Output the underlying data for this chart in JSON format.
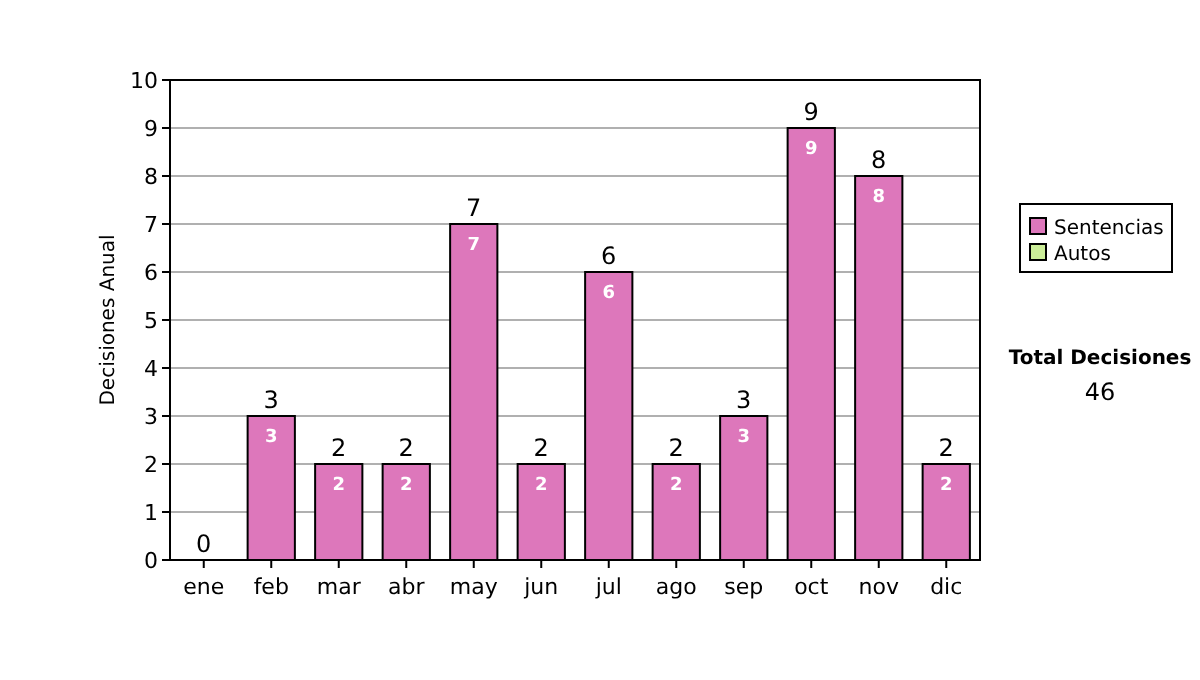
{
  "chart_data": {
    "type": "bar",
    "stacked": true,
    "ylabel": "Decisiones Anual",
    "categories": [
      "ene",
      "feb",
      "mar",
      "abr",
      "may",
      "jun",
      "jul",
      "ago",
      "sep",
      "oct",
      "nov",
      "dic"
    ],
    "series": [
      {
        "name": "Sentencias",
        "color": "#dd77bb",
        "values": [
          0,
          3,
          2,
          2,
          7,
          2,
          6,
          2,
          3,
          9,
          8,
          2
        ],
        "value_labels": [
          null,
          "3",
          "2",
          "2",
          "7",
          "2",
          "6",
          "2",
          "3",
          "9",
          "8",
          "2"
        ]
      },
      {
        "name": "Autos",
        "color": "#ccee99",
        "values": [
          0,
          0,
          0,
          0,
          0,
          0,
          0,
          0,
          0,
          0,
          0,
          0
        ]
      }
    ],
    "totals": [
      "0",
      "3",
      "2",
      "2",
      "7",
      "2",
      "6",
      "2",
      "3",
      "9",
      "8",
      "2"
    ],
    "ylim": [
      0,
      10
    ],
    "yticks": [
      0,
      1,
      2,
      3,
      4,
      5,
      6,
      7,
      8,
      9,
      10
    ],
    "grid": "y",
    "legend": "right",
    "annotations": [
      "Total Decisiones",
      "46"
    ]
  }
}
